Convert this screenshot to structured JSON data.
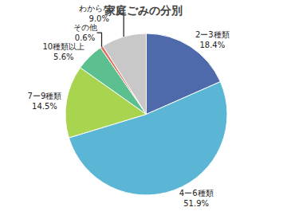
{
  "chart_data": {
    "type": "pie",
    "title": "家庭ごみの分別",
    "categories": [
      "2ー3種類",
      "4ー6種類",
      "7ー9種類",
      "10種類以上",
      "その他",
      "わからない"
    ],
    "values": [
      18.4,
      51.9,
      14.5,
      5.6,
      0.6,
      9.0
    ],
    "value_labels": [
      "18.4%",
      "51.9%",
      "14.5%",
      "5.6%",
      "0.6%",
      "9.0%"
    ],
    "colors": [
      "#4f6aaa",
      "#5bb5d5",
      "#a8d44f",
      "#5bbf90",
      "#e07060",
      "#c8c8c8"
    ],
    "data_labels": true
  }
}
